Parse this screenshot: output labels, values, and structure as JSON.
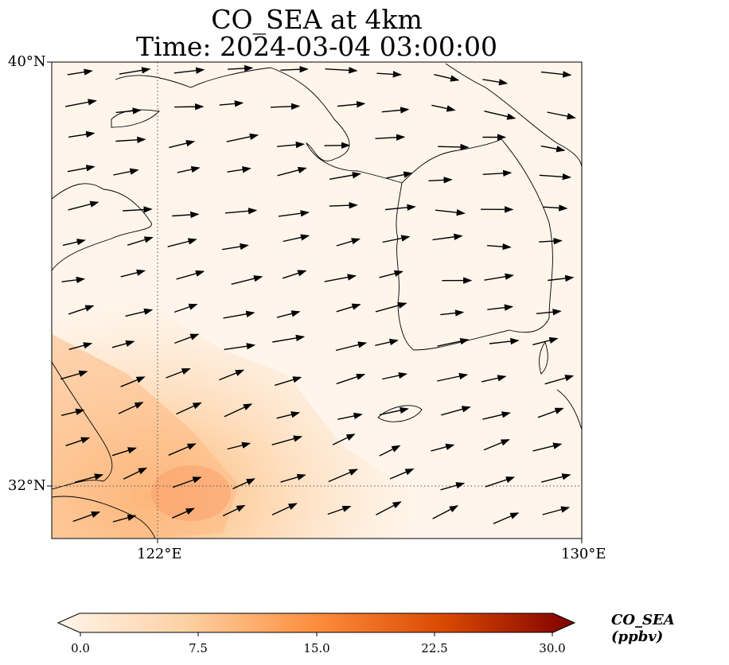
{
  "title_line1": "CO_SEA at 4km",
  "title_line2": "Time: 2024-03-04 03:00:00",
  "lat_ticks": [
    "40°N",
    "32°N"
  ],
  "lon_ticks": [
    "122°E",
    "130°E"
  ],
  "colorbar": {
    "label": "CO_SEA (ppbv)",
    "ticks": [
      "0.0",
      "7.5",
      "15.0",
      "22.5",
      "30.0"
    ],
    "colors": [
      "#fff5eb",
      "#fdd0a2",
      "#fd8d3c",
      "#d94801",
      "#7f2704"
    ]
  },
  "extent": {
    "lon_min": 120,
    "lon_max": 130,
    "lat_min": 31,
    "lat_max": 40
  },
  "gridlines": {
    "lon": 122,
    "lat": 32,
    "style": "dotted"
  }
}
